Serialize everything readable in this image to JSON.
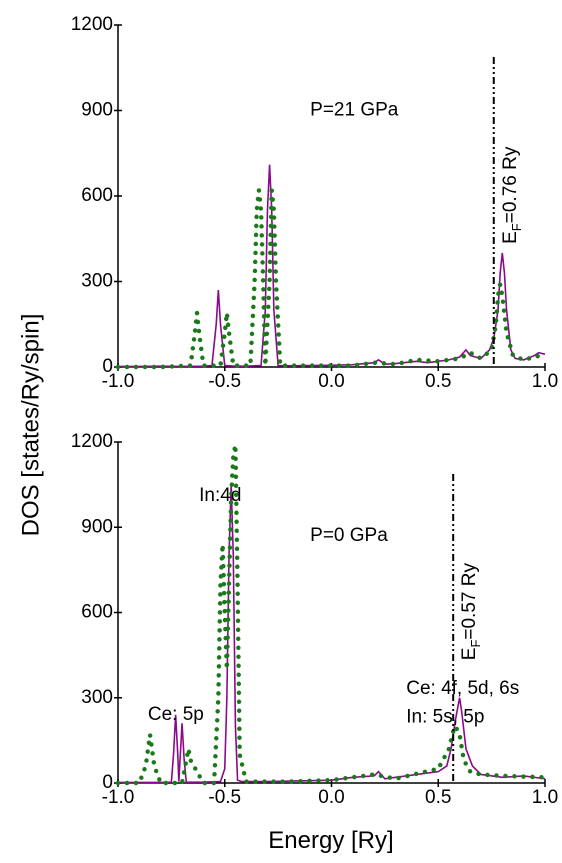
{
  "shared": {
    "xlabel": "Energy [Ry]",
    "ylabel": "DOS [states/Ry/spin]"
  },
  "chart_data": [
    {
      "type": "line",
      "xlim": [
        -1,
        1
      ],
      "ylim": [
        0,
        1200
      ],
      "xticks": [
        {
          "value": -1,
          "label": "-1.0"
        },
        -0.5,
        {
          "value": 0,
          "label": "0.0"
        },
        0.5,
        {
          "value": 1,
          "label": "1.0"
        }
      ],
      "yticks": [
        0,
        300,
        600,
        900,
        1200
      ],
      "annotations": [
        "P=21 GPa"
      ],
      "fermi": {
        "value": 0.76,
        "label": {
          "main": "E",
          "sub": "F",
          "rest": "=0.76 Ry"
        }
      },
      "series": [
        {
          "color": "#8b0a8b",
          "style": "solid",
          "x": [
            -1.0,
            -0.9,
            -0.8,
            -0.7,
            -0.6,
            -0.56,
            -0.54,
            -0.53,
            -0.52,
            -0.5,
            -0.45,
            -0.4,
            -0.33,
            -0.31,
            -0.3,
            -0.29,
            -0.28,
            -0.27,
            -0.25,
            -0.2,
            -0.1,
            0.0,
            0.1,
            0.2,
            0.22,
            0.25,
            0.3,
            0.4,
            0.45,
            0.5,
            0.55,
            0.6,
            0.63,
            0.65,
            0.7,
            0.74,
            0.76,
            0.78,
            0.79,
            0.8,
            0.81,
            0.82,
            0.84,
            0.86,
            0.9,
            0.95,
            0.97,
            1.0
          ],
          "values": [
            2,
            2,
            3,
            2,
            3,
            5,
            150,
            270,
            150,
            5,
            3,
            3,
            5,
            200,
            550,
            710,
            550,
            200,
            5,
            4,
            5,
            6,
            8,
            15,
            25,
            10,
            12,
            20,
            15,
            20,
            25,
            35,
            60,
            40,
            30,
            60,
            100,
            200,
            330,
            400,
            330,
            200,
            60,
            30,
            25,
            40,
            50,
            45
          ]
        },
        {
          "color": "#1a7a1a",
          "style": "dotted",
          "x": [
            -1.0,
            -0.9,
            -0.8,
            -0.66,
            -0.64,
            -0.63,
            -0.62,
            -0.6,
            -0.52,
            -0.5,
            -0.49,
            -0.48,
            -0.46,
            -0.38,
            -0.36,
            -0.35,
            -0.34,
            -0.33,
            -0.32,
            -0.31,
            -0.29,
            -0.28,
            -0.27,
            -0.26,
            -0.24,
            -0.1,
            0.1,
            0.2,
            0.3,
            0.4,
            0.5,
            0.6,
            0.65,
            0.7,
            0.75,
            0.77,
            0.78,
            0.79,
            0.8,
            0.82,
            0.85,
            0.9,
            1.0
          ],
          "values": [
            0,
            0,
            0,
            5,
            120,
            190,
            120,
            5,
            5,
            120,
            190,
            120,
            5,
            5,
            300,
            550,
            620,
            550,
            300,
            5,
            300,
            620,
            550,
            300,
            5,
            5,
            5,
            15,
            10,
            25,
            20,
            30,
            50,
            30,
            60,
            150,
            250,
            290,
            250,
            120,
            40,
            25,
            45
          ]
        }
      ]
    },
    {
      "type": "line",
      "xlim": [
        -1,
        1
      ],
      "ylim": [
        0,
        1200
      ],
      "xticks": [
        {
          "value": -1,
          "label": "-1.0"
        },
        -0.5,
        {
          "value": 0,
          "label": "0.0"
        },
        0.5,
        {
          "value": 1,
          "label": "1.0"
        }
      ],
      "yticks": [
        0,
        300,
        600,
        900,
        1200
      ],
      "annotations": [
        "In:4d",
        "P=0 GPa",
        "Ce: 5p",
        "Ce: 4f, 5d, 6s",
        "In: 5s, 5p"
      ],
      "fermi": {
        "value": 0.57,
        "label": {
          "main": "E",
          "sub": "F",
          "rest": "=0.57 Ry"
        }
      },
      "series": [
        {
          "color": "#8b0a8b",
          "style": "solid",
          "x": [
            -1.0,
            -0.8,
            -0.75,
            -0.74,
            -0.73,
            -0.72,
            -0.715,
            -0.7,
            -0.69,
            -0.68,
            -0.6,
            -0.52,
            -0.5,
            -0.49,
            -0.48,
            -0.47,
            -0.46,
            -0.45,
            -0.44,
            -0.42,
            -0.3,
            -0.1,
            0.0,
            0.1,
            0.2,
            0.22,
            0.25,
            0.4,
            0.5,
            0.54,
            0.56,
            0.58,
            0.6,
            0.61,
            0.63,
            0.66,
            0.7,
            0.8,
            0.9,
            1.0
          ],
          "values": [
            2,
            2,
            3,
            100,
            240,
            100,
            5,
            210,
            80,
            3,
            3,
            5,
            50,
            300,
            800,
            1050,
            800,
            200,
            10,
            5,
            5,
            8,
            10,
            20,
            25,
            40,
            15,
            30,
            40,
            60,
            120,
            220,
            300,
            250,
            120,
            60,
            30,
            20,
            25,
            15
          ]
        },
        {
          "color": "#1a7a1a",
          "style": "dotted",
          "x": [
            -1.0,
            -0.9,
            -0.87,
            -0.85,
            -0.83,
            -0.8,
            -0.7,
            -0.68,
            -0.67,
            -0.66,
            -0.6,
            -0.55,
            -0.53,
            -0.52,
            -0.51,
            -0.5,
            -0.49,
            -0.48,
            -0.47,
            -0.46,
            -0.45,
            -0.44,
            -0.43,
            -0.4,
            -0.2,
            0.0,
            0.2,
            0.3,
            0.5,
            0.55,
            0.57,
            0.58,
            0.6,
            0.62,
            0.65,
            0.7,
            0.8,
            1.0
          ],
          "values": [
            0,
            0,
            60,
            170,
            60,
            0,
            0,
            80,
            120,
            80,
            0,
            0,
            300,
            700,
            840,
            600,
            400,
            700,
            1000,
            1150,
            1190,
            700,
            100,
            5,
            5,
            10,
            30,
            15,
            50,
            120,
            180,
            200,
            170,
            80,
            40,
            30,
            25,
            20
          ]
        }
      ]
    }
  ]
}
